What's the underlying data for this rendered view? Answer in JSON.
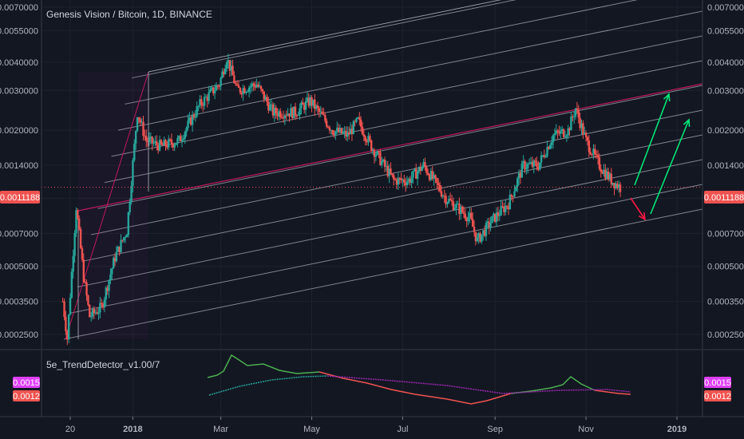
{
  "header": {
    "symbol_title": "Genesis Vision / Bitcoin, 1D, BINANCE"
  },
  "price_axis": {
    "ticks": [
      "0.0070000",
      "0.0055000",
      "0.0040000",
      "0.0030000",
      "0.0020000",
      "0.0014000",
      "0.0010000",
      "0.0007000",
      "0.0005000",
      "0.0003500",
      "0.0002500"
    ],
    "scale": "log",
    "current_price": "0.0011188",
    "current_price_color": "#ef5350"
  },
  "time_axis": {
    "ticks": [
      "20",
      "2018",
      "Mar",
      "May",
      "Jul",
      "Sep",
      "Nov",
      "2019"
    ]
  },
  "indicator": {
    "name": "5e_TrendDetector_v1.00/7",
    "value_upper": "0.0015",
    "value_lower": "0.0012",
    "upper_color": "#e040fb",
    "lower_color": "#ef5350",
    "line_colors": {
      "bull": "#4caf50",
      "bear": "#ef5350",
      "signal_a": "#26a69a",
      "signal_b": "#9c27b0"
    }
  },
  "colors": {
    "background": "#131722",
    "candle_up": "#26a69a",
    "candle_down": "#ef5350",
    "channel_lines": "#9598a1",
    "pitchfork_median": "#c2185b",
    "projection_up": "#00e676",
    "projection_down": "#ff1744"
  },
  "chart_data": {
    "type": "candlestick",
    "symbol": "Genesis Vision / Bitcoin",
    "interval": "1D",
    "exchange": "BINANCE",
    "price_scale": "log",
    "ylim": [
      0.00022,
      0.0075
    ],
    "trend_path": [
      {
        "date": "2017-11-15",
        "price": 0.00035
      },
      {
        "date": "2017-11-18",
        "price": 0.00024
      },
      {
        "date": "2017-11-24",
        "price": 0.00092
      },
      {
        "date": "2017-11-29",
        "price": 0.00045
      },
      {
        "date": "2017-12-03",
        "price": 0.0003
      },
      {
        "date": "2017-12-11",
        "price": 0.00033
      },
      {
        "date": "2017-12-20",
        "price": 0.00055
      },
      {
        "date": "2017-12-28",
        "price": 0.00072
      },
      {
        "date": "2018-01-04",
        "price": 0.0024
      },
      {
        "date": "2018-01-10",
        "price": 0.0018
      },
      {
        "date": "2018-01-20",
        "price": 0.0017
      },
      {
        "date": "2018-02-01",
        "price": 0.0018
      },
      {
        "date": "2018-02-15",
        "price": 0.0026
      },
      {
        "date": "2018-02-28",
        "price": 0.0032
      },
      {
        "date": "2018-03-05",
        "price": 0.0042
      },
      {
        "date": "2018-03-12",
        "price": 0.003
      },
      {
        "date": "2018-03-25",
        "price": 0.0032
      },
      {
        "date": "2018-04-05",
        "price": 0.0024
      },
      {
        "date": "2018-04-20",
        "price": 0.0024
      },
      {
        "date": "2018-04-30",
        "price": 0.0027
      },
      {
        "date": "2018-05-15",
        "price": 0.002
      },
      {
        "date": "2018-05-25",
        "price": 0.0019
      },
      {
        "date": "2018-06-01",
        "price": 0.0022
      },
      {
        "date": "2018-06-10",
        "price": 0.0017
      },
      {
        "date": "2018-06-25",
        "price": 0.0012
      },
      {
        "date": "2018-07-05",
        "price": 0.0012
      },
      {
        "date": "2018-07-15",
        "price": 0.0014
      },
      {
        "date": "2018-07-30",
        "price": 0.001
      },
      {
        "date": "2018-08-15",
        "price": 0.00082
      },
      {
        "date": "2018-08-20",
        "price": 0.00065
      },
      {
        "date": "2018-08-30",
        "price": 0.0008
      },
      {
        "date": "2018-09-10",
        "price": 0.00095
      },
      {
        "date": "2018-09-20",
        "price": 0.0014
      },
      {
        "date": "2018-09-30",
        "price": 0.0014
      },
      {
        "date": "2018-10-10",
        "price": 0.0019
      },
      {
        "date": "2018-10-20",
        "price": 0.002
      },
      {
        "date": "2018-10-25",
        "price": 0.0025
      },
      {
        "date": "2018-11-01",
        "price": 0.0018
      },
      {
        "date": "2018-11-10",
        "price": 0.0014
      },
      {
        "date": "2018-11-18",
        "price": 0.0012
      },
      {
        "date": "2018-11-24",
        "price": 0.0011188
      }
    ]
  }
}
